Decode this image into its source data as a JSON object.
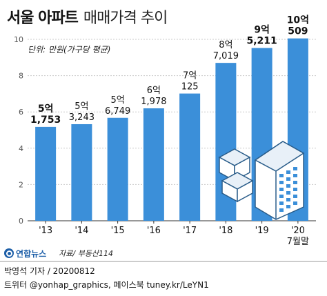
{
  "title": {
    "main": "서울 아파트",
    "sub": "매매가격 추이"
  },
  "note": "단위: 만원(가구당 평균)",
  "colors": {
    "bar": "#3b8fd9",
    "grid": "#c9c9c9",
    "axis": "#333333"
  },
  "chart_data": {
    "type": "bar",
    "categories": [
      "'13",
      "'14",
      "'15",
      "'16",
      "'17",
      "'18",
      "'19",
      "'20"
    ],
    "category_sublabels": [
      "",
      "",
      "",
      "",
      "",
      "",
      "",
      "7월말"
    ],
    "values": [
      51753,
      53243,
      56749,
      61978,
      70125,
      87019,
      95211,
      100509
    ],
    "data_labels": [
      {
        "top": "5억",
        "bottom": "1,753",
        "bold": true
      },
      {
        "top": "5억",
        "bottom": "3,243",
        "bold": false
      },
      {
        "top": "5억",
        "bottom": "6,749",
        "bold": false
      },
      {
        "top": "6억",
        "bottom": "1,978",
        "bold": false
      },
      {
        "top": "7억",
        "bottom": "125",
        "bold": false
      },
      {
        "top": "8억",
        "bottom": "7,019",
        "bold": false
      },
      {
        "top": "9억",
        "bottom": "5,211",
        "bold": true
      },
      {
        "top": "10억",
        "bottom": "509",
        "bold": true
      }
    ],
    "yticks": [
      0,
      2,
      4,
      6,
      8,
      10
    ],
    "ytick_labels": [
      "0",
      "2",
      "4",
      "6",
      "8",
      "10"
    ],
    "ylim": [
      0,
      100000
    ],
    "grid": true,
    "title": "",
    "xlabel": "",
    "ylabel": ""
  },
  "footer": {
    "logo": "연합뉴스",
    "source": "자료/ 부동산114",
    "byline": "박영석 기자 / 20200812",
    "social": "트위터 @yonhap_graphics, 페이스북 tuney.kr/LeYN1"
  }
}
